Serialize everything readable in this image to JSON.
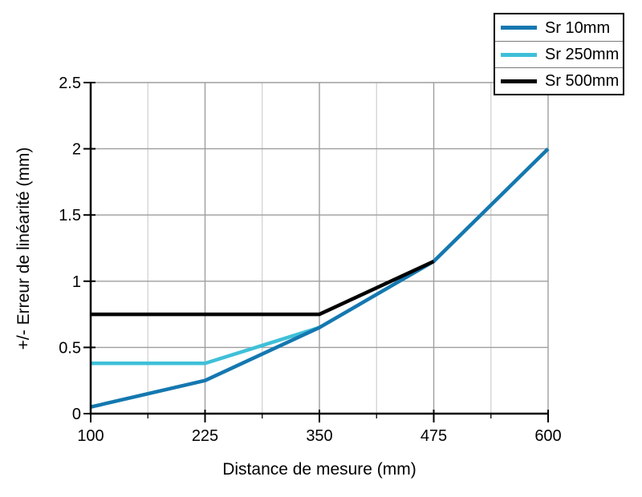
{
  "chart_data": {
    "type": "line",
    "title": "",
    "xlabel": "Distance de mesure (mm)",
    "ylabel": "+/- Erreur de linéarité (mm)",
    "xlim": [
      100,
      600
    ],
    "ylim": [
      0,
      2.5
    ],
    "x_major_ticks": [
      100,
      225,
      350,
      475,
      600
    ],
    "x_minor_ticks": [
      162.5,
      287.5,
      412.5,
      537.5
    ],
    "y_major_ticks": [
      0,
      0.5,
      1,
      1.5,
      2,
      2.5
    ],
    "grid": {
      "major_on": true,
      "minor_vertical_on": true,
      "major_color": "#9e9e9e",
      "minor_color": "#cfcfcf"
    },
    "axis_color": "#000000",
    "legend_position": "top-right",
    "series": [
      {
        "name": "Sr 10mm",
        "color": "#1478b0",
        "x": [
          100,
          225,
          350,
          475,
          600
        ],
        "y": [
          0.05,
          0.25,
          0.65,
          1.15,
          2.0
        ]
      },
      {
        "name": "Sr 250mm",
        "color": "#3fc0d8",
        "x": [
          100,
          225,
          350
        ],
        "y": [
          0.38,
          0.38,
          0.65
        ]
      },
      {
        "name": "Sr 500mm",
        "color": "#000000",
        "x": [
          100,
          350,
          475
        ],
        "y": [
          0.75,
          0.75,
          1.15
        ]
      }
    ],
    "draw_order": [
      1,
      0,
      2
    ]
  }
}
